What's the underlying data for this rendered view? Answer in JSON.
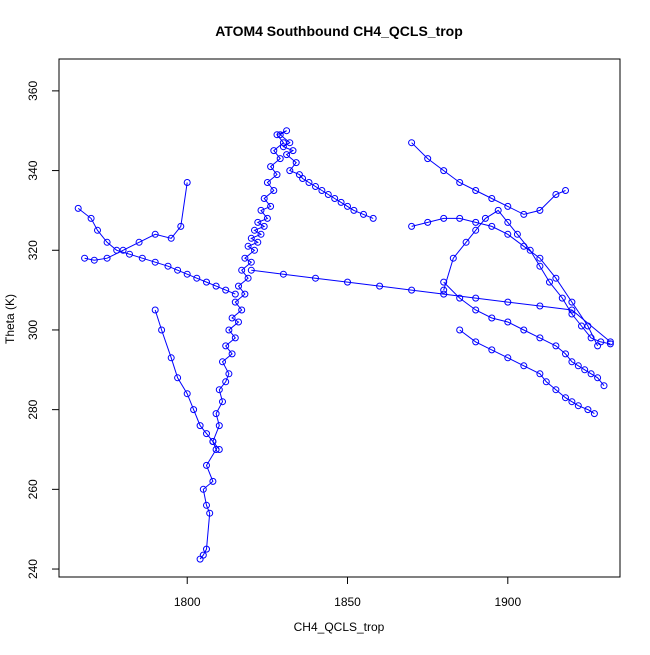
{
  "chart_data": {
    "type": "scatter",
    "title": "ATOM4 Southbound CH4_QCLS_trop",
    "xlabel": "CH4_QCLS_trop",
    "ylabel": "Theta (K)",
    "xlim": [
      1760,
      1935
    ],
    "ylim": [
      238,
      368
    ],
    "xticks": [
      1800,
      1850,
      1900
    ],
    "yticks": [
      240,
      260,
      280,
      300,
      320,
      340,
      360
    ],
    "grid": false,
    "marker": "open-circle",
    "connected": true,
    "color": "#0000ff",
    "series": [
      {
        "x": [
          1804,
          1805,
          1806,
          1807,
          1806,
          1805,
          1808,
          1806,
          1809,
          1808,
          1810,
          1809,
          1811,
          1810,
          1812,
          1813,
          1811,
          1814,
          1812,
          1815,
          1813,
          1816,
          1814,
          1817,
          1815,
          1818,
          1816,
          1819,
          1817,
          1820,
          1818,
          1821,
          1819,
          1822,
          1820,
          1823,
          1821,
          1824,
          1822,
          1825,
          1823,
          1826,
          1824,
          1827,
          1825,
          1828,
          1826,
          1829,
          1827,
          1830,
          1828,
          1831,
          1829,
          1832,
          1830,
          1833,
          1831,
          1834,
          1832,
          1835,
          1836,
          1838,
          1840,
          1842,
          1844,
          1846,
          1848,
          1850,
          1852,
          1855,
          1858
        ],
        "y": [
          242.5,
          243.5,
          245,
          254,
          256,
          260,
          262,
          266,
          270,
          272,
          276,
          279,
          282,
          285,
          287,
          289,
          292,
          294,
          296,
          298,
          300,
          302,
          303,
          305,
          307,
          309,
          311,
          313,
          315,
          317,
          318,
          320,
          321,
          322,
          323,
          324,
          325,
          326,
          327,
          328,
          330,
          331,
          333,
          335,
          337,
          339,
          341,
          343,
          345,
          347,
          349,
          350,
          349,
          347,
          346,
          345,
          344,
          342,
          340,
          339,
          338,
          337,
          336,
          335,
          334,
          333,
          332,
          331,
          330,
          329,
          328
        ]
      },
      {
        "x": [
          1766,
          1770,
          1772,
          1775,
          1778,
          1782,
          1786,
          1790,
          1794,
          1797,
          1800,
          1803,
          1806,
          1809,
          1812,
          1815
        ],
        "y": [
          330.5,
          328,
          325,
          322,
          320,
          319,
          318,
          317,
          316,
          315,
          314,
          313,
          312,
          311,
          310,
          309
        ]
      },
      {
        "x": [
          1768,
          1771,
          1775,
          1780,
          1785,
          1790,
          1795,
          1798,
          1800
        ],
        "y": [
          318,
          317.5,
          318,
          320,
          322,
          324,
          323,
          326,
          337
        ]
      },
      {
        "x": [
          1790,
          1792,
          1795,
          1797,
          1800,
          1802,
          1804,
          1806,
          1808,
          1810
        ],
        "y": [
          305,
          300,
          293,
          288,
          284,
          280,
          276,
          274,
          272,
          270
        ]
      },
      {
        "x": [
          1870,
          1875,
          1880,
          1885,
          1890,
          1895,
          1900,
          1905,
          1910,
          1915,
          1918
        ],
        "y": [
          347,
          343,
          340,
          337,
          335,
          333,
          331,
          329,
          330,
          334,
          335
        ]
      },
      {
        "x": [
          1870,
          1875,
          1880,
          1885,
          1890,
          1895,
          1900,
          1905,
          1910,
          1915,
          1920,
          1925,
          1928
        ],
        "y": [
          326,
          327,
          328,
          328,
          327,
          326,
          324,
          321,
          318,
          313,
          307,
          301,
          296
        ]
      },
      {
        "x": [
          1880,
          1885,
          1890,
          1895,
          1900,
          1905,
          1910,
          1915,
          1918,
          1920,
          1922,
          1924,
          1926,
          1928,
          1930
        ],
        "y": [
          312,
          308,
          305,
          303,
          302,
          300,
          298,
          296,
          294,
          292,
          291,
          290,
          289,
          288,
          286
        ]
      },
      {
        "x": [
          1885,
          1890,
          1895,
          1900,
          1905,
          1910,
          1912,
          1915,
          1918,
          1920,
          1922,
          1925,
          1927
        ],
        "y": [
          300,
          297,
          295,
          293,
          291,
          289,
          287,
          285,
          283,
          282,
          281,
          280,
          279
        ]
      },
      {
        "x": [
          1880,
          1883,
          1887,
          1890,
          1893,
          1897,
          1900,
          1903,
          1907,
          1910,
          1913,
          1917,
          1920,
          1923,
          1926,
          1929,
          1932
        ],
        "y": [
          310,
          318,
          322,
          325,
          328,
          330,
          327,
          324,
          320,
          316,
          312,
          308,
          304,
          301,
          298,
          297,
          296.5
        ]
      },
      {
        "x": [
          1820,
          1830,
          1840,
          1850,
          1860,
          1870,
          1880,
          1890,
          1900,
          1910,
          1920,
          1932
        ],
        "y": [
          315,
          314,
          313,
          312,
          311,
          310,
          309,
          308,
          307,
          306,
          305,
          297
        ]
      }
    ]
  }
}
